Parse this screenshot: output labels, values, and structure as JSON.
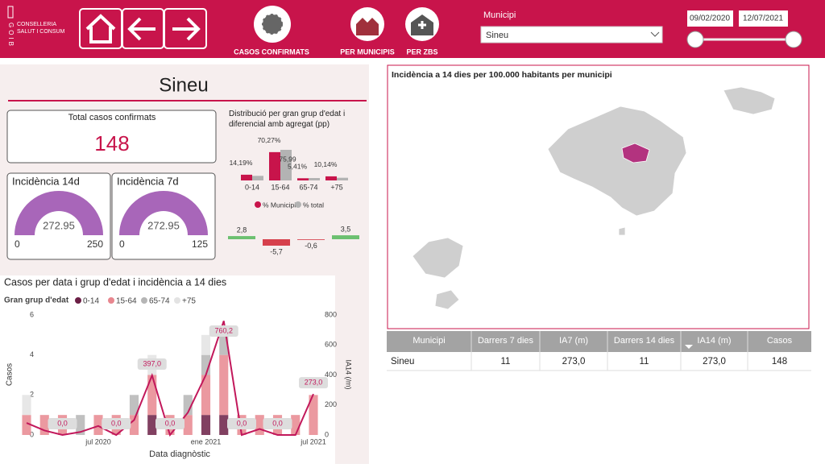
{
  "header": {
    "logo": {
      "vertical": "GOIB",
      "line1": "CONSELLERIA",
      "line2": "SALUT I CONSUM"
    },
    "nav": [
      "CASOS CONFIRMATS",
      "PER MUNICIPIS",
      "PER ZBS"
    ],
    "filter": {
      "label": "Municipi",
      "value": "Sineu",
      "date_from": "09/02/2020",
      "date_to": "12/07/2021"
    }
  },
  "title": "Sineu",
  "total_card": {
    "label": "Total casos confirmats",
    "value": 148
  },
  "gauges": [
    {
      "label": "Incidència 14d",
      "value": 272.95,
      "min": 0,
      "max": 250,
      "color": "#a866b9"
    },
    {
      "label": "Incidència 7d",
      "value": 272.95,
      "min": 0,
      "max": 125,
      "color": "#a866b9"
    }
  ],
  "age_chart": {
    "type": "bar",
    "title": "Distribució per gran grup d'edat i diferencial amb agregat (pp)",
    "categories": [
      "0-14",
      "15-64",
      "65-74",
      "+75"
    ],
    "series": [
      {
        "name": "% Municipi",
        "color": "#c8144b",
        "values": [
          14.19,
          70.27,
          5.41,
          10.14
        ],
        "value_labels": [
          "14,19%",
          "70,27%",
          "5,41%",
          "10,14%"
        ]
      },
      {
        "name": "% total",
        "color": "#b3b3b3",
        "values": [
          11.39,
          75.99,
          6.01,
          6.64
        ],
        "value_labels": [
          null,
          "75,99",
          null,
          null
        ]
      }
    ]
  },
  "diff_chart": {
    "type": "bar",
    "values": [
      2.8,
      -5.7,
      -0.6,
      3.5
    ],
    "value_labels": [
      "2,8",
      "-5,7",
      "-0,6",
      "3,5"
    ],
    "positive_color": "#6cc070",
    "negative_color": "#d6404c"
  },
  "time_chart": {
    "type": "bar",
    "title": "Casos per data i grup d'edat i incidència a 14 dies",
    "legend_title": "Gran grup d'edat",
    "x": [
      "2020-03",
      "2020-04",
      "2020-05",
      "2020-06",
      "2020-07",
      "2020-08",
      "2020-09",
      "2020-10",
      "2020-11",
      "2020-12",
      "2021-01",
      "2021-02",
      "2021-03",
      "2021-04",
      "2021-05",
      "2021-06",
      "2021-07"
    ],
    "series": [
      {
        "name": "0-14",
        "color": "#6b1f45",
        "values": [
          0,
          0,
          0,
          0,
          0,
          0,
          0,
          1,
          0,
          0,
          1,
          1,
          0,
          0,
          0,
          0,
          0
        ]
      },
      {
        "name": "15-64",
        "color": "#e8878f",
        "values": [
          1,
          1,
          1,
          0,
          1,
          1,
          1,
          2,
          1,
          1,
          2,
          3,
          1,
          1,
          1,
          1,
          2
        ]
      },
      {
        "name": "65-74",
        "color": "#b5b5b5",
        "values": [
          0,
          0,
          0,
          1,
          0,
          0,
          1,
          0,
          0,
          1,
          1,
          1,
          0,
          0,
          0,
          0,
          0
        ]
      },
      {
        "name": "+75",
        "color": "#e3e3e3",
        "values": [
          1,
          0,
          0,
          0,
          0,
          0,
          0,
          1,
          0,
          0,
          1,
          0,
          0,
          0,
          0,
          0,
          0
        ]
      }
    ],
    "line": {
      "axis": "y2",
      "color": "#c2185b",
      "values": [
        80,
        30,
        0,
        20,
        60,
        0,
        100,
        397,
        0,
        150,
        400,
        760.2,
        0,
        40,
        0,
        0,
        273
      ],
      "value_labels": [
        null,
        null,
        "0,0",
        null,
        null,
        "0,0",
        null,
        "397,0",
        "0,0",
        null,
        null,
        "760,2",
        "0,0",
        null,
        "0,0",
        null,
        "273,0"
      ]
    },
    "xlim": [
      "2020-03",
      "2021-07"
    ],
    "xticks": [
      {
        "value": "2020-07",
        "label": "jul 2020"
      },
      {
        "value": "2021-01",
        "label": "ene 2021"
      },
      {
        "value": "2021-07",
        "label": "jul 2021"
      }
    ],
    "ylim": [
      0,
      6
    ],
    "yticks": [
      0,
      2,
      4,
      6
    ],
    "y2lim": [
      0,
      800
    ],
    "y2ticks": [
      0,
      200,
      400,
      600,
      800
    ],
    "ylabel": "Casos",
    "y2label": "IA14 (/m)",
    "xlabel": "Data diagnòstic"
  },
  "map": {
    "title": "Incidència a 14 dies per 100.000 habitants per municipi"
  },
  "table": {
    "headers": [
      "Municipi",
      "Darrers 7 dies",
      "IA7 (m)",
      "Darrers 14 dies",
      "IA14 (m)",
      "Casos"
    ],
    "rows": [
      [
        "Sineu",
        11,
        "273,0",
        11,
        "273,0",
        148
      ]
    ]
  }
}
